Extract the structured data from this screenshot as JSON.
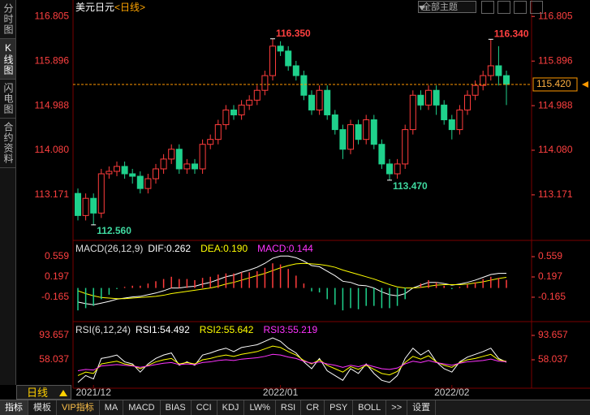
{
  "sidebar": {
    "tabs": [
      "分时图",
      "K线图",
      "闪电图",
      "合约资料"
    ]
  },
  "toolbar": {
    "theme": "全部主题",
    "period": "日线",
    "items": [
      "指标",
      "模板",
      "VIP指标",
      "MA",
      "MACD",
      "BIAS",
      "CCI",
      "KDJ",
      "LW%",
      "RSI",
      "CR",
      "PSY",
      "BOLL",
      ">>",
      "设置"
    ]
  },
  "chart_data": [
    {
      "type": "candlestick",
      "title": "美元日元",
      "subtitle": "<日线>",
      "categories": [
        null,
        null,
        "2021/12",
        null,
        null,
        null,
        null,
        null,
        null,
        null,
        null,
        null,
        null,
        null,
        null,
        null,
        null,
        null,
        null,
        null,
        null,
        null,
        null,
        null,
        null,
        null,
        "2022/01",
        null,
        null,
        null,
        null,
        null,
        null,
        null,
        null,
        null,
        null,
        null,
        null,
        null,
        null,
        null,
        null,
        null,
        null,
        null,
        null,
        null,
        "2022/02",
        null,
        null,
        null,
        null,
        null,
        null,
        null
      ],
      "open": [
        113.2,
        112.75,
        113.1,
        112.8,
        113.6,
        113.65,
        113.75,
        113.6,
        113.55,
        113.3,
        113.5,
        113.7,
        113.9,
        114.1,
        113.7,
        113.8,
        113.7,
        114.2,
        114.3,
        114.6,
        114.9,
        114.8,
        115.0,
        115.1,
        115.3,
        115.6,
        116.2,
        116.1,
        115.8,
        115.6,
        115.2,
        114.9,
        115.3,
        114.8,
        114.5,
        114.1,
        114.6,
        114.3,
        114.7,
        114.2,
        113.8,
        113.6,
        113.8,
        114.5,
        115.2,
        115.0,
        115.3,
        115.0,
        114.7,
        114.5,
        114.9,
        115.2,
        115.4,
        115.6,
        115.8,
        115.6
      ],
      "high": [
        113.3,
        113.2,
        113.2,
        113.7,
        113.75,
        113.85,
        113.85,
        113.7,
        113.65,
        113.6,
        113.8,
        114.0,
        114.2,
        114.2,
        113.9,
        113.9,
        114.3,
        114.4,
        114.7,
        115.0,
        115.0,
        115.1,
        115.2,
        115.4,
        115.7,
        116.35,
        116.3,
        116.2,
        115.9,
        115.7,
        115.3,
        115.4,
        115.4,
        114.9,
        114.6,
        114.7,
        114.7,
        114.8,
        114.8,
        114.3,
        113.9,
        113.9,
        114.6,
        115.3,
        115.3,
        115.4,
        115.4,
        115.1,
        114.8,
        115.0,
        115.3,
        115.5,
        115.7,
        116.34,
        116.2,
        115.7
      ],
      "low": [
        112.65,
        112.65,
        112.56,
        112.7,
        113.5,
        113.55,
        113.5,
        113.4,
        113.2,
        113.2,
        113.4,
        113.6,
        113.8,
        113.6,
        113.6,
        113.6,
        113.6,
        114.1,
        114.2,
        114.5,
        114.7,
        114.7,
        114.9,
        115.0,
        115.2,
        115.5,
        116.0,
        115.7,
        115.5,
        115.1,
        114.8,
        114.8,
        114.7,
        114.4,
        113.9,
        114.0,
        114.2,
        114.2,
        114.1,
        113.7,
        113.47,
        113.5,
        113.7,
        114.4,
        114.9,
        114.9,
        114.8,
        114.6,
        114.3,
        114.4,
        114.8,
        115.1,
        115.3,
        115.5,
        115.4,
        115.0
      ],
      "close": [
        112.75,
        113.1,
        112.8,
        113.6,
        113.65,
        113.75,
        113.6,
        113.55,
        113.3,
        113.5,
        113.7,
        113.9,
        114.1,
        113.7,
        113.8,
        113.7,
        114.2,
        114.3,
        114.6,
        114.9,
        114.8,
        115.0,
        115.1,
        115.3,
        115.6,
        116.2,
        116.1,
        115.8,
        115.6,
        115.2,
        114.9,
        115.3,
        114.8,
        114.5,
        114.1,
        114.6,
        114.3,
        114.7,
        114.2,
        113.8,
        113.6,
        113.8,
        114.5,
        115.2,
        115.0,
        115.3,
        115.0,
        114.7,
        114.5,
        114.9,
        115.2,
        115.4,
        115.6,
        115.8,
        115.6,
        115.42
      ],
      "up_color": "#ff3c3c",
      "down_color": "#1fd18c",
      "ylim": [
        112.26,
        117.14
      ],
      "yticks": [
        116.805,
        115.896,
        114.988,
        {
          "value": 114.08,
          "label": "114.080"
        },
        113.171
      ],
      "current_price": {
        "value": 115.42,
        "label": "115.420"
      },
      "annotations": [
        {
          "value": 116.35,
          "label": "116.350"
        },
        {
          "value": 116.34,
          "label": "116.340"
        },
        {
          "value": 113.47,
          "label": "113.470"
        },
        {
          "value": 112.56,
          "label": "112.560"
        }
      ]
    },
    {
      "type": "line",
      "title": "MACD(26,12,9)",
      "ylim": [
        -0.586,
        0.835
      ],
      "yticks": [
        0.559,
        0.197,
        -0.165
      ],
      "series": [
        {
          "name": "DIF:0.262",
          "color": "#ffffff",
          "values": [
            -0.25,
            -0.28,
            -0.3,
            -0.27,
            -0.24,
            -0.2,
            -0.18,
            -0.16,
            -0.15,
            -0.12,
            -0.09,
            -0.05,
            0.0,
            0.0,
            0.02,
            0.03,
            0.07,
            0.1,
            0.15,
            0.2,
            0.23,
            0.28,
            0.32,
            0.37,
            0.44,
            0.53,
            0.57,
            0.57,
            0.54,
            0.48,
            0.4,
            0.38,
            0.3,
            0.22,
            0.12,
            0.1,
            0.05,
            0.04,
            0.0,
            -0.07,
            -0.12,
            -0.14,
            -0.1,
            0.0,
            0.05,
            0.1,
            0.1,
            0.08,
            0.05,
            0.07,
            0.1,
            0.14,
            0.19,
            0.24,
            0.26,
            0.262
          ]
        },
        {
          "name": "DEA:0.190",
          "color": "#ffff00",
          "values": [
            -0.05,
            -0.1,
            -0.14,
            -0.17,
            -0.18,
            -0.19,
            -0.19,
            -0.18,
            -0.17,
            -0.16,
            -0.15,
            -0.13,
            -0.1,
            -0.08,
            -0.06,
            -0.04,
            -0.02,
            0.0,
            0.03,
            0.07,
            0.1,
            0.14,
            0.18,
            0.22,
            0.26,
            0.31,
            0.36,
            0.4,
            0.43,
            0.44,
            0.43,
            0.42,
            0.4,
            0.37,
            0.32,
            0.28,
            0.24,
            0.2,
            0.16,
            0.11,
            0.06,
            0.02,
            0.0,
            0.0,
            0.01,
            0.03,
            0.05,
            0.06,
            0.06,
            0.06,
            0.07,
            0.09,
            0.11,
            0.14,
            0.17,
            0.19
          ]
        },
        {
          "name": "MACD:0.144",
          "color": "#ff33ff",
          "kind": "bar",
          "values": [
            -0.4,
            -0.36,
            -0.32,
            -0.2,
            -0.12,
            -0.02,
            0.02,
            0.04,
            0.04,
            0.08,
            0.12,
            0.16,
            0.2,
            0.16,
            0.16,
            0.14,
            0.18,
            0.2,
            0.24,
            0.26,
            0.26,
            0.28,
            0.28,
            0.3,
            0.36,
            0.44,
            0.42,
            0.34,
            0.22,
            0.08,
            -0.06,
            -0.08,
            -0.2,
            -0.3,
            -0.4,
            -0.36,
            -0.38,
            -0.32,
            -0.32,
            -0.36,
            -0.36,
            -0.32,
            -0.2,
            0.0,
            0.08,
            0.14,
            0.1,
            0.04,
            -0.02,
            0.02,
            0.06,
            0.1,
            0.16,
            0.2,
            0.18,
            0.144
          ]
        }
      ]
    },
    {
      "type": "line",
      "title": "RSI(6,12,24)",
      "ylim": [
        16.48,
        112.66
      ],
      "yticks": [
        93.657,
        58.037
      ],
      "series": [
        {
          "name": "RSI1:54.492",
          "color": "#ffffff",
          "values": [
            25,
            35,
            30,
            60,
            62,
            65,
            55,
            52,
            40,
            52,
            60,
            65,
            68,
            50,
            55,
            50,
            65,
            68,
            72,
            75,
            70,
            76,
            78,
            80,
            85,
            90,
            85,
            75,
            68,
            55,
            45,
            60,
            42,
            35,
            28,
            45,
            38,
            52,
            38,
            28,
            25,
            35,
            60,
            75,
            65,
            72,
            55,
            45,
            40,
            55,
            62,
            66,
            70,
            75,
            60,
            54.492
          ]
        },
        {
          "name": "RSI2:55.642",
          "color": "#ffff00",
          "values": [
            35,
            40,
            38,
            52,
            54,
            56,
            52,
            50,
            45,
            50,
            55,
            58,
            60,
            52,
            54,
            52,
            58,
            60,
            63,
            65,
            63,
            66,
            68,
            70,
            74,
            78,
            76,
            70,
            65,
            57,
            52,
            58,
            50,
            45,
            40,
            48,
            44,
            50,
            44,
            38,
            36,
            41,
            54,
            63,
            59,
            64,
            55,
            50,
            47,
            54,
            58,
            60,
            63,
            66,
            58,
            55.642
          ]
        },
        {
          "name": "RSI3:55.219",
          "color": "#ff33ff",
          "values": [
            42,
            44,
            43,
            49,
            50,
            51,
            50,
            49,
            47,
            49,
            51,
            53,
            54,
            51,
            52,
            51,
            54,
            55,
            57,
            58,
            57,
            59,
            60,
            61,
            63,
            66,
            65,
            62,
            60,
            56,
            53,
            55,
            52,
            50,
            47,
            50,
            48,
            51,
            48,
            45,
            44,
            46,
            52,
            56,
            54,
            57,
            54,
            52,
            50,
            53,
            55,
            56,
            57,
            59,
            56,
            55.219
          ]
        }
      ]
    }
  ]
}
